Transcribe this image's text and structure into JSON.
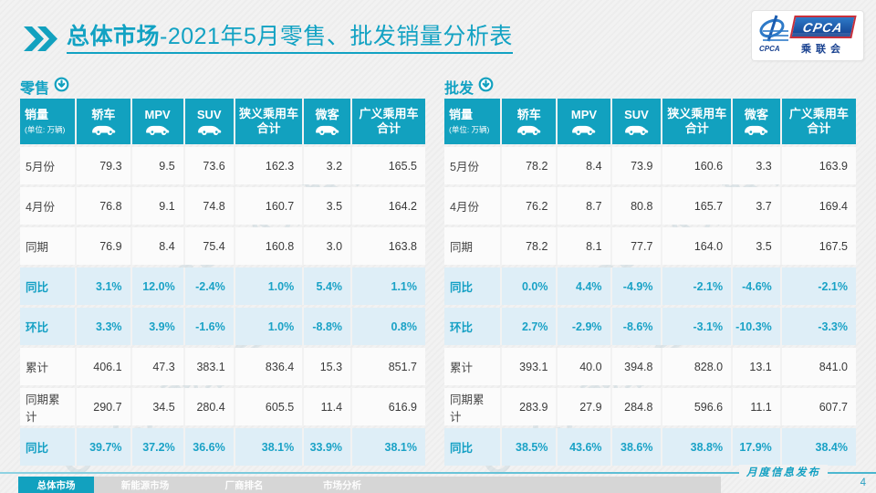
{
  "title": {
    "emphasis": "总体市场",
    "rest": "-2021年5月零售、批发销量分析表"
  },
  "logo": {
    "acronym": "CPCA",
    "cn_name": "乘联会",
    "emblem_text": "CPCA"
  },
  "watermark": "CPCA乘联会",
  "columns": [
    {
      "key": "sales",
      "label": "销量",
      "sub": "(单位: 万辆)"
    },
    {
      "key": "sedan",
      "label": "轿车",
      "icon": "sedan-car-icon"
    },
    {
      "key": "mpv",
      "label": "MPV",
      "icon": "mpv-car-icon"
    },
    {
      "key": "suv",
      "label": "SUV",
      "icon": "suv-car-icon"
    },
    {
      "key": "narrow-pv-total",
      "two_line": [
        "狭义乘用车",
        "合计"
      ]
    },
    {
      "key": "microvan",
      "label": "微客",
      "icon": "microvan-car-icon"
    },
    {
      "key": "broad-pv-total",
      "two_line": [
        "广义乘用车",
        "合计"
      ]
    }
  ],
  "tables": [
    {
      "name": "retail",
      "section": "零售",
      "rows": [
        {
          "label": "5月份",
          "percent": false,
          "values": [
            "79.3",
            "9.5",
            "73.6",
            "162.3",
            "3.2",
            "165.5"
          ]
        },
        {
          "label": "4月份",
          "percent": false,
          "values": [
            "76.8",
            "9.1",
            "74.8",
            "160.7",
            "3.5",
            "164.2"
          ]
        },
        {
          "label": "同期",
          "percent": false,
          "values": [
            "76.9",
            "8.4",
            "75.4",
            "160.8",
            "3.0",
            "163.8"
          ]
        },
        {
          "label": "同比",
          "percent": true,
          "values": [
            "3.1%",
            "12.0%",
            "-2.4%",
            "1.0%",
            "5.4%",
            "1.1%"
          ]
        },
        {
          "label": "环比",
          "percent": true,
          "values": [
            "3.3%",
            "3.9%",
            "-1.6%",
            "1.0%",
            "-8.8%",
            "0.8%"
          ]
        },
        {
          "label": "累计",
          "percent": false,
          "values": [
            "406.1",
            "47.3",
            "383.1",
            "836.4",
            "15.3",
            "851.7"
          ]
        },
        {
          "label": "同期累计",
          "percent": false,
          "values": [
            "290.7",
            "34.5",
            "280.4",
            "605.5",
            "11.4",
            "616.9"
          ]
        },
        {
          "label": "同比",
          "percent": true,
          "values": [
            "39.7%",
            "37.2%",
            "36.6%",
            "38.1%",
            "33.9%",
            "38.1%"
          ]
        }
      ]
    },
    {
      "name": "wholesale",
      "section": "批发",
      "rows": [
        {
          "label": "5月份",
          "percent": false,
          "values": [
            "78.2",
            "8.4",
            "73.9",
            "160.6",
            "3.3",
            "163.9"
          ]
        },
        {
          "label": "4月份",
          "percent": false,
          "values": [
            "76.2",
            "8.7",
            "80.8",
            "165.7",
            "3.7",
            "169.4"
          ]
        },
        {
          "label": "同期",
          "percent": false,
          "values": [
            "78.2",
            "8.1",
            "77.7",
            "164.0",
            "3.5",
            "167.5"
          ]
        },
        {
          "label": "同比",
          "percent": true,
          "values": [
            "0.0%",
            "4.4%",
            "-4.9%",
            "-2.1%",
            "-4.6%",
            "-2.1%"
          ]
        },
        {
          "label": "环比",
          "percent": true,
          "values": [
            "2.7%",
            "-2.9%",
            "-8.6%",
            "-3.1%",
            "-10.3%",
            "-3.3%"
          ]
        },
        {
          "label": "累计",
          "percent": false,
          "values": [
            "393.1",
            "40.0",
            "394.8",
            "828.0",
            "13.1",
            "841.0"
          ]
        },
        {
          "label": "同期累计",
          "percent": false,
          "values": [
            "283.9",
            "27.9",
            "284.8",
            "596.6",
            "11.1",
            "607.7"
          ]
        },
        {
          "label": "同比",
          "percent": true,
          "values": [
            "38.5%",
            "43.6%",
            "38.6%",
            "38.8%",
            "17.9%",
            "38.4%"
          ]
        }
      ]
    }
  ],
  "footer": {
    "tabs": [
      "总体市场",
      "新能源市场",
      "厂商排名",
      "市场分析"
    ],
    "publication": "月度信息发布",
    "page": "4"
  },
  "colors": {
    "accent": "#12a1bf",
    "percent_bg": "#deeef7",
    "logo_blue": "#123f8e",
    "logo_red": "#c8303c"
  }
}
